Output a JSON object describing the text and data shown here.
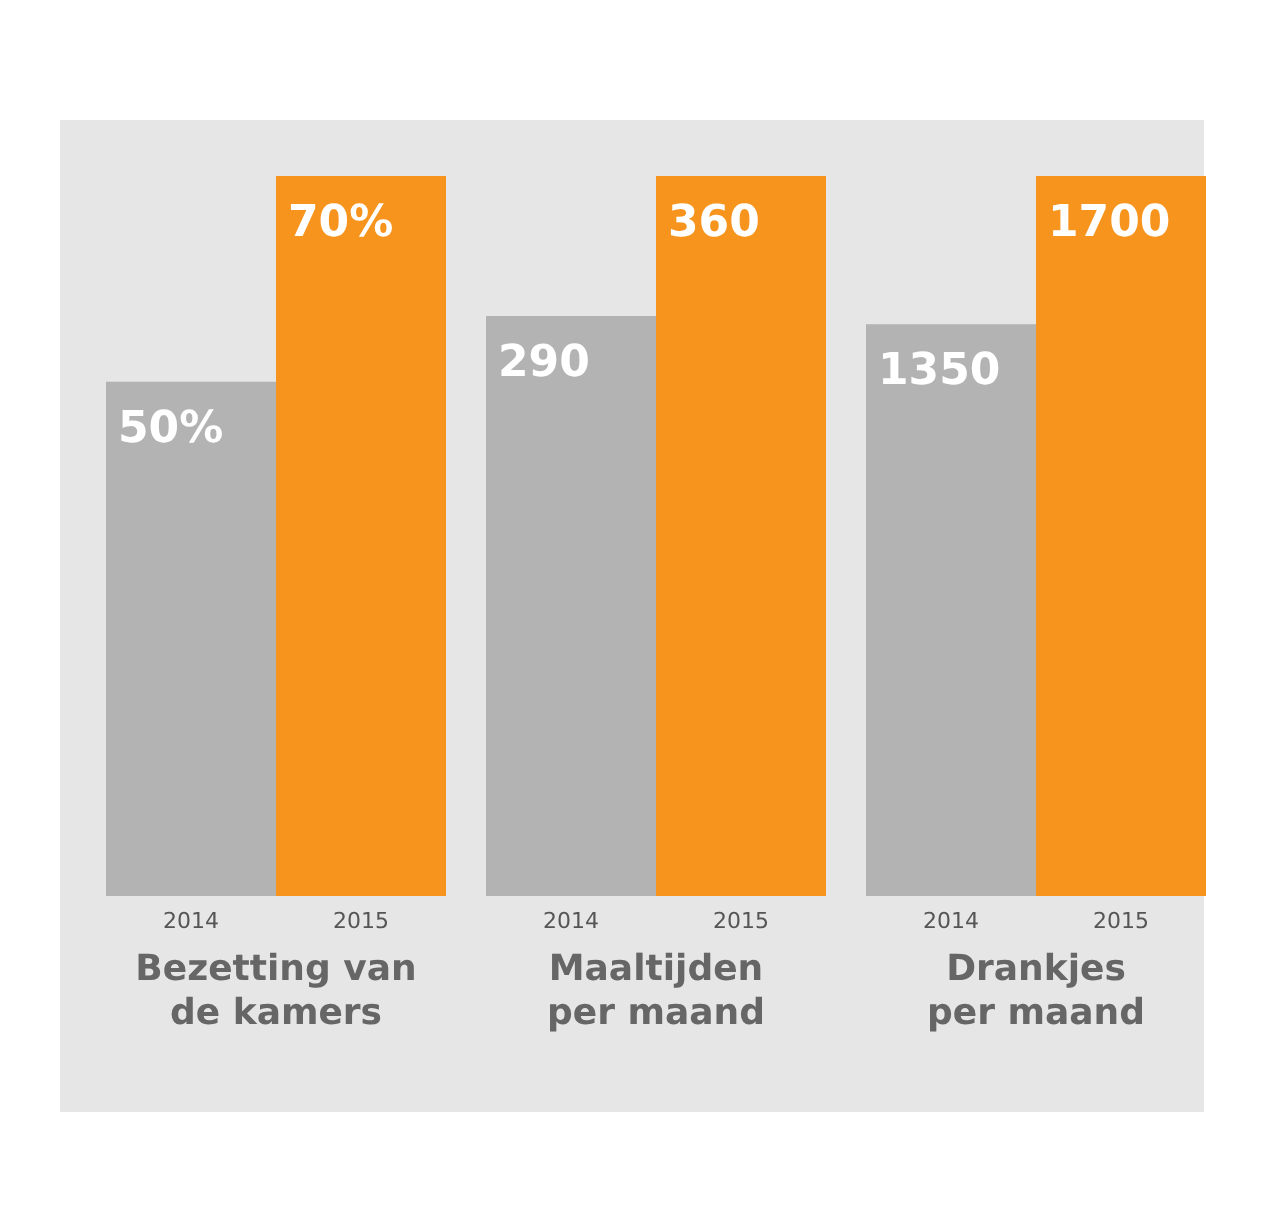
{
  "chart_data": [
    {
      "type": "bar",
      "xlabel": "Bezetting van de kamers",
      "categories": [
        "2014",
        "2015"
      ],
      "values": [
        50,
        70
      ],
      "value_labels": [
        "50%",
        "70%"
      ],
      "colors": [
        "#b3b3b3",
        "#f7941d"
      ]
    },
    {
      "type": "bar",
      "xlabel": "Maaltijden per maand",
      "categories": [
        "2014",
        "2015"
      ],
      "values": [
        290,
        360
      ],
      "data_labels": true,
      "colors": [
        "#b3b3b3",
        "#f7941d"
      ]
    },
    {
      "type": "bar",
      "xlabel": "Drankjes per maand",
      "categories": [
        "2014",
        "2015"
      ],
      "values": [
        1350,
        1700
      ],
      "data_labels": true,
      "colors": [
        "#b3b3b3",
        "#f7941d"
      ]
    }
  ]
}
